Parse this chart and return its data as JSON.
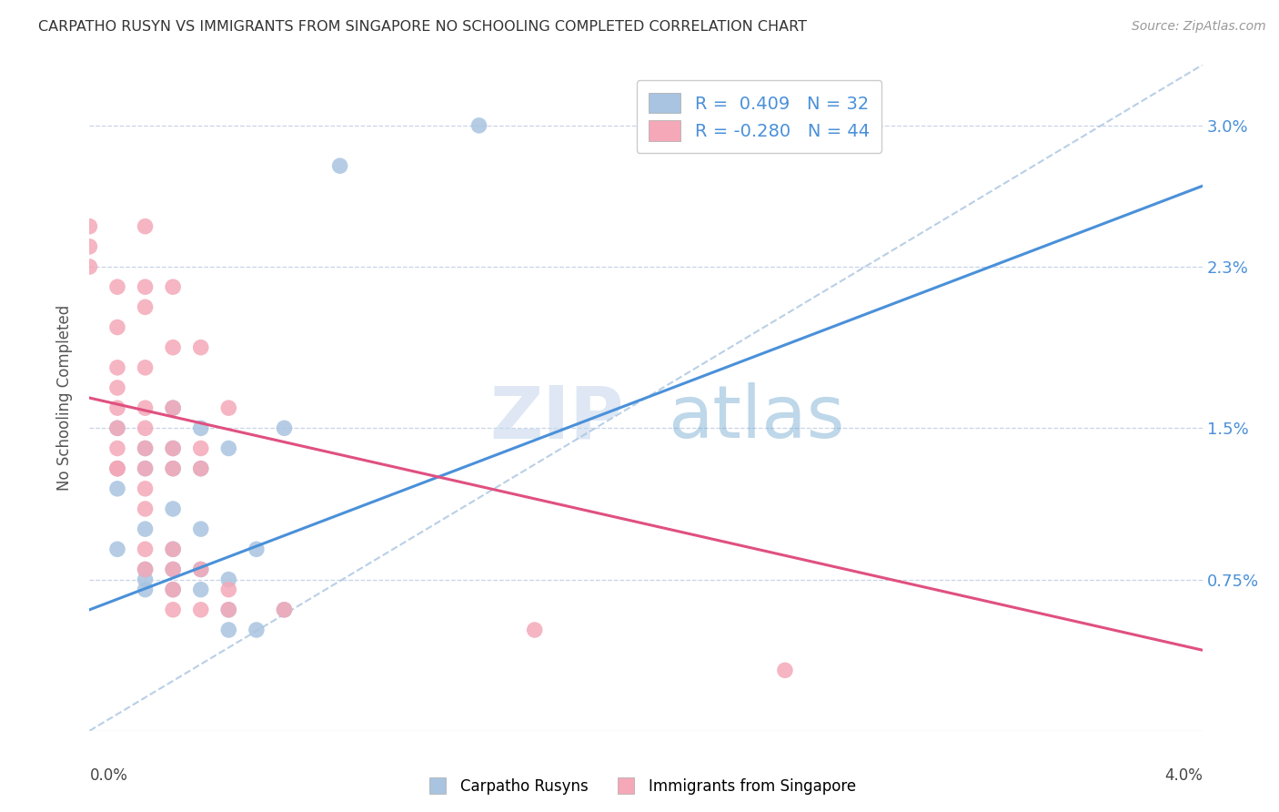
{
  "title": "CARPATHO RUSYN VS IMMIGRANTS FROM SINGAPORE NO SCHOOLING COMPLETED CORRELATION CHART",
  "source": "Source: ZipAtlas.com",
  "ylabel": "No Schooling Completed",
  "ytick_labels": [
    "0.75%",
    "1.5%",
    "2.3%",
    "3.0%"
  ],
  "ytick_values": [
    0.0075,
    0.015,
    0.023,
    0.03
  ],
  "xlim": [
    0.0,
    0.04
  ],
  "ylim": [
    0.0,
    0.033
  ],
  "legend_blue_r": "R =  0.409",
  "legend_blue_n": "N = 32",
  "legend_pink_r": "R = -0.280",
  "legend_pink_n": "N = 44",
  "blue_color": "#a8c4e0",
  "pink_color": "#f4a8b8",
  "blue_line_color": "#4a90d9",
  "pink_line_color": "#e05080",
  "dashed_line_color": "#a8c4e0",
  "watermark_zip": "ZIP",
  "watermark_atlas": "atlas",
  "blue_scatter": [
    [
      0.001,
      0.015
    ],
    [
      0.001,
      0.013
    ],
    [
      0.001,
      0.012
    ],
    [
      0.001,
      0.009
    ],
    [
      0.002,
      0.014
    ],
    [
      0.002,
      0.013
    ],
    [
      0.002,
      0.01
    ],
    [
      0.002,
      0.008
    ],
    [
      0.002,
      0.0075
    ],
    [
      0.002,
      0.007
    ],
    [
      0.003,
      0.016
    ],
    [
      0.003,
      0.014
    ],
    [
      0.003,
      0.013
    ],
    [
      0.003,
      0.011
    ],
    [
      0.003,
      0.009
    ],
    [
      0.003,
      0.008
    ],
    [
      0.003,
      0.007
    ],
    [
      0.004,
      0.015
    ],
    [
      0.004,
      0.013
    ],
    [
      0.004,
      0.01
    ],
    [
      0.004,
      0.008
    ],
    [
      0.004,
      0.007
    ],
    [
      0.005,
      0.014
    ],
    [
      0.005,
      0.0075
    ],
    [
      0.005,
      0.006
    ],
    [
      0.005,
      0.005
    ],
    [
      0.006,
      0.009
    ],
    [
      0.006,
      0.005
    ],
    [
      0.007,
      0.015
    ],
    [
      0.007,
      0.006
    ],
    [
      0.009,
      0.028
    ],
    [
      0.014,
      0.03
    ]
  ],
  "pink_scatter": [
    [
      0.0,
      0.025
    ],
    [
      0.0,
      0.024
    ],
    [
      0.0,
      0.023
    ],
    [
      0.001,
      0.022
    ],
    [
      0.001,
      0.02
    ],
    [
      0.001,
      0.018
    ],
    [
      0.001,
      0.017
    ],
    [
      0.001,
      0.016
    ],
    [
      0.001,
      0.015
    ],
    [
      0.001,
      0.014
    ],
    [
      0.001,
      0.013
    ],
    [
      0.001,
      0.013
    ],
    [
      0.002,
      0.025
    ],
    [
      0.002,
      0.022
    ],
    [
      0.002,
      0.021
    ],
    [
      0.002,
      0.018
    ],
    [
      0.002,
      0.016
    ],
    [
      0.002,
      0.015
    ],
    [
      0.002,
      0.014
    ],
    [
      0.002,
      0.013
    ],
    [
      0.002,
      0.012
    ],
    [
      0.002,
      0.011
    ],
    [
      0.002,
      0.009
    ],
    [
      0.002,
      0.008
    ],
    [
      0.003,
      0.022
    ],
    [
      0.003,
      0.019
    ],
    [
      0.003,
      0.016
    ],
    [
      0.003,
      0.014
    ],
    [
      0.003,
      0.013
    ],
    [
      0.003,
      0.009
    ],
    [
      0.003,
      0.008
    ],
    [
      0.003,
      0.007
    ],
    [
      0.003,
      0.006
    ],
    [
      0.004,
      0.019
    ],
    [
      0.004,
      0.014
    ],
    [
      0.004,
      0.013
    ],
    [
      0.004,
      0.008
    ],
    [
      0.004,
      0.006
    ],
    [
      0.005,
      0.016
    ],
    [
      0.005,
      0.007
    ],
    [
      0.005,
      0.006
    ],
    [
      0.007,
      0.006
    ],
    [
      0.016,
      0.005
    ],
    [
      0.025,
      0.003
    ]
  ],
  "blue_trend_x": [
    0.0,
    0.04
  ],
  "blue_trend_y": [
    0.006,
    0.027
  ],
  "pink_trend_x": [
    0.0,
    0.04
  ],
  "pink_trend_y": [
    0.0165,
    0.004
  ],
  "dashed_trend_x": [
    0.0,
    0.04
  ],
  "dashed_trend_y": [
    0.0,
    0.033
  ],
  "background_color": "#ffffff",
  "grid_color": "#c8d4e8"
}
